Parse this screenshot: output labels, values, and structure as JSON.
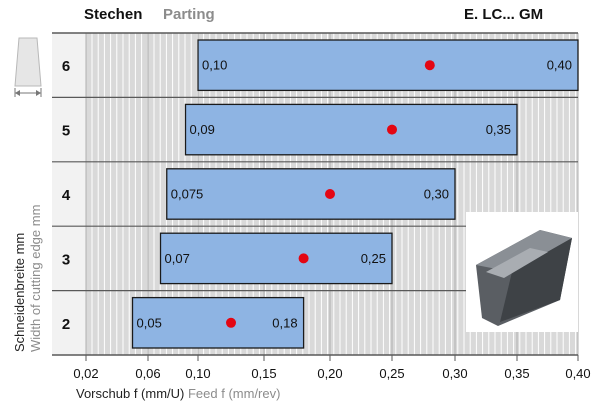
{
  "header": {
    "title_de": "Stechen",
    "title_en": "Parting",
    "code": "E. LC... GM"
  },
  "axis_labels": {
    "y_de": "Schneidenbreite mm",
    "y_en": "Width of cutting edge mm",
    "x_de": "Vorschub f (mm/U)",
    "x_en": "Feed f (mm/rev)"
  },
  "icons": {
    "insert_width": "insert-width-diagram-icon",
    "insert_photo": "cutting-insert-photo"
  },
  "colors": {
    "bar_fill": "#8eb4e3",
    "bar_stroke": "#1a1a1a",
    "marker": "#e30613",
    "grid_bg": "#d9d9d9",
    "grid_line": "#ffffff",
    "row_band": "#f2f2f2"
  },
  "chart_data": {
    "type": "bar",
    "orientation": "horizontal-range",
    "x_ticks": [
      "0,02",
      "0,06",
      "0,10",
      "0,15",
      "0,20",
      "0,25",
      "0,30",
      "0,35",
      "0,40"
    ],
    "xlim": [
      0.02,
      0.4
    ],
    "grid": true,
    "categories": [
      "6",
      "5",
      "4",
      "3",
      "2"
    ],
    "ranges": [
      {
        "width": "6",
        "min": 0.1,
        "max": 0.4,
        "recommended": 0.28,
        "min_label": "0,10",
        "max_label": "0,40"
      },
      {
        "width": "5",
        "min": 0.09,
        "max": 0.35,
        "recommended": 0.25,
        "min_label": "0,09",
        "max_label": "0,35"
      },
      {
        "width": "4",
        "min": 0.075,
        "max": 0.3,
        "recommended": 0.2,
        "min_label": "0,075",
        "max_label": "0,30"
      },
      {
        "width": "3",
        "min": 0.07,
        "max": 0.25,
        "recommended": 0.18,
        "min_label": "0,07",
        "max_label": "0,25"
      },
      {
        "width": "2",
        "min": 0.05,
        "max": 0.18,
        "recommended": 0.125,
        "min_label": "0,05",
        "max_label": "0,18"
      }
    ]
  }
}
